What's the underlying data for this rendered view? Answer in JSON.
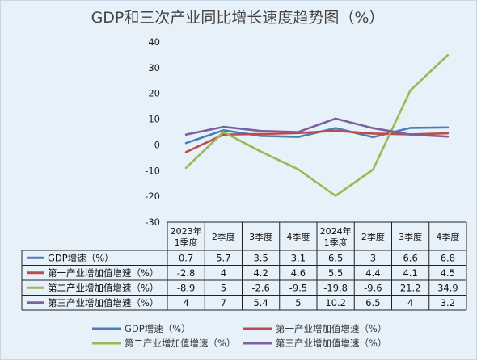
{
  "chart_data": {
    "type": "line",
    "title": "GDP和三次产业同比增长速度趋势图（%）",
    "categories": [
      [
        "2023年",
        "1季度"
      ],
      [
        "2季度"
      ],
      [
        "3季度"
      ],
      [
        "4季度"
      ],
      [
        "2024年",
        "1季度"
      ],
      [
        "2季度"
      ],
      [
        "3季度"
      ],
      [
        "4季度"
      ]
    ],
    "ylim": [
      -30,
      40
    ],
    "yticks": [
      40,
      30,
      20,
      10,
      0,
      -10,
      -20,
      -30
    ],
    "grid": false,
    "legend_placement": "bottom",
    "series": [
      {
        "name": "GDP增速（%）",
        "color": "#4a7ebb",
        "values": [
          0.7,
          5.7,
          3.5,
          3.1,
          6.5,
          3,
          6.6,
          6.8
        ],
        "labels": [
          "0.7",
          "5.7",
          "3.5",
          "3.1",
          "6.5",
          "3",
          "6.6",
          "6.8"
        ]
      },
      {
        "name": "第一产业增加值增速（%）",
        "color": "#be4b48",
        "values": [
          -2.8,
          4,
          4.2,
          4.6,
          5.5,
          4.4,
          4.1,
          4.5
        ],
        "labels": [
          "-2.8",
          "4",
          "4.2",
          "4.6",
          "5.5",
          "4.4",
          "4.1",
          "4.5"
        ]
      },
      {
        "name": "第二产业增加值增速（%）",
        "color": "#98b954",
        "values": [
          -8.9,
          5,
          -2.6,
          -9.5,
          -19.8,
          -9.6,
          21.2,
          34.9
        ],
        "labels": [
          "-8.9",
          "5",
          "-2.6",
          "-9.5",
          "-19.8",
          "-9.6",
          "21.2",
          "34.9"
        ]
      },
      {
        "name": "第三产业增加值增速（%）",
        "color": "#7d60a0",
        "values": [
          4,
          7,
          5.4,
          5,
          10.2,
          6.5,
          4,
          3.2
        ],
        "labels": [
          "4",
          "7",
          "5.4",
          "5",
          "10.2",
          "6.5",
          "4",
          "3.2"
        ]
      }
    ]
  }
}
